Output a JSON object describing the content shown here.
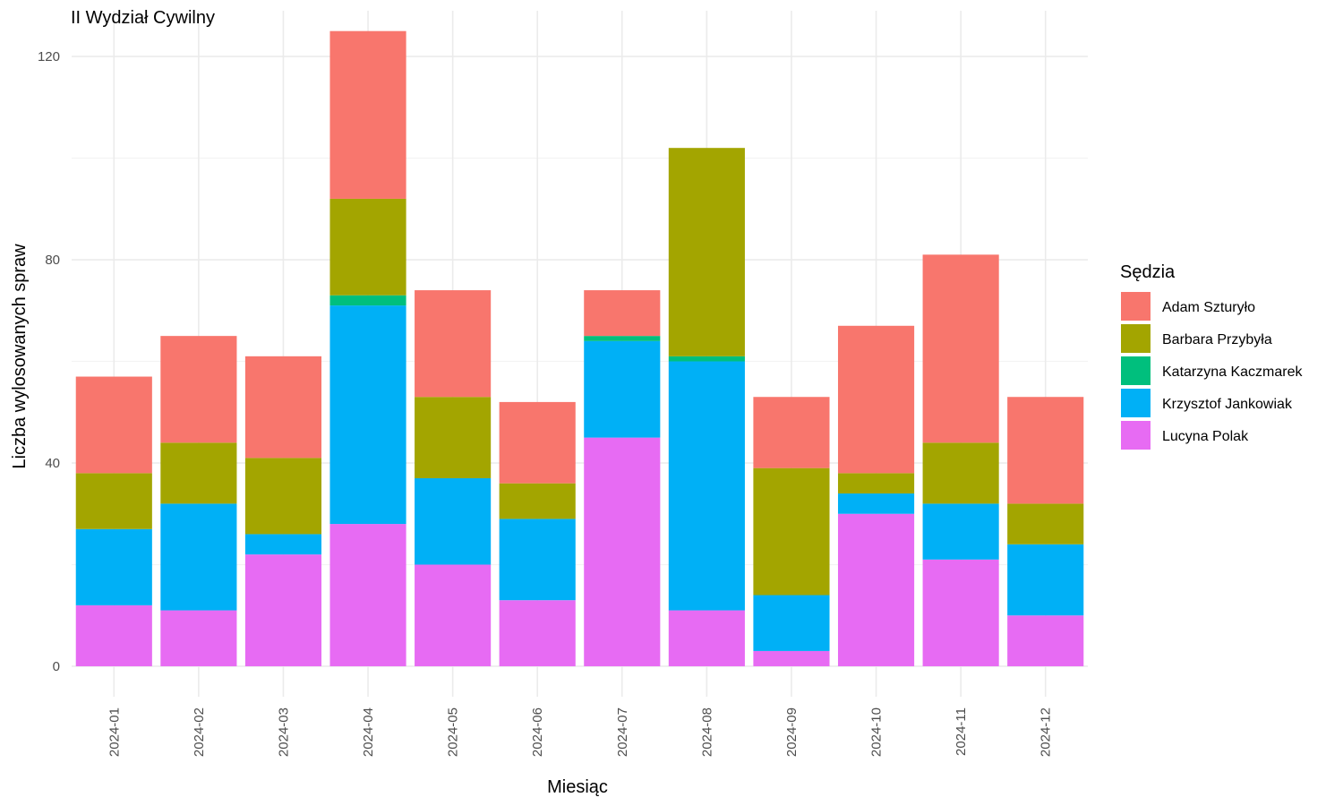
{
  "chart_data": {
    "type": "bar",
    "stacked": true,
    "title": "II Wydział Cywilny",
    "xlabel": "Miesiąc",
    "ylabel": "Liczba wylosowanych spraw",
    "ylim": [
      -6,
      129
    ],
    "yticks": [
      0,
      40,
      80,
      120
    ],
    "grid": true,
    "legend": {
      "title": "Sędzia",
      "position": "right"
    },
    "categories": [
      "2024-01",
      "2024-02",
      "2024-03",
      "2024-04",
      "2024-05",
      "2024-06",
      "2024-07",
      "2024-08",
      "2024-09",
      "2024-10",
      "2024-11",
      "2024-12"
    ],
    "series": [
      {
        "name": "Lucyna Polak",
        "color": "#E76BF3",
        "values": [
          12,
          11,
          22,
          28,
          20,
          13,
          45,
          11,
          3,
          30,
          21,
          10
        ]
      },
      {
        "name": "Krzysztof Jankowiak",
        "color": "#00B0F6",
        "values": [
          15,
          21,
          4,
          43,
          17,
          16,
          19,
          49,
          11,
          4,
          11,
          14
        ]
      },
      {
        "name": "Katarzyna Kaczmarek",
        "color": "#00BF7D",
        "values": [
          0,
          0,
          0,
          2,
          0,
          0,
          1,
          1,
          0,
          0,
          0,
          0
        ]
      },
      {
        "name": "Barbara Przybyła",
        "color": "#A3A500",
        "values": [
          11,
          12,
          15,
          19,
          16,
          7,
          0,
          41,
          25,
          4,
          12,
          8
        ]
      },
      {
        "name": "Adam Szturyło",
        "color": "#F8766D",
        "values": [
          19,
          21,
          20,
          33,
          21,
          16,
          9,
          0,
          14,
          29,
          37,
          21
        ]
      }
    ],
    "legend_order": [
      "Adam Szturyło",
      "Barbara Przybyła",
      "Katarzyna Kaczmarek",
      "Krzysztof Jankowiak",
      "Lucyna Polak"
    ]
  }
}
